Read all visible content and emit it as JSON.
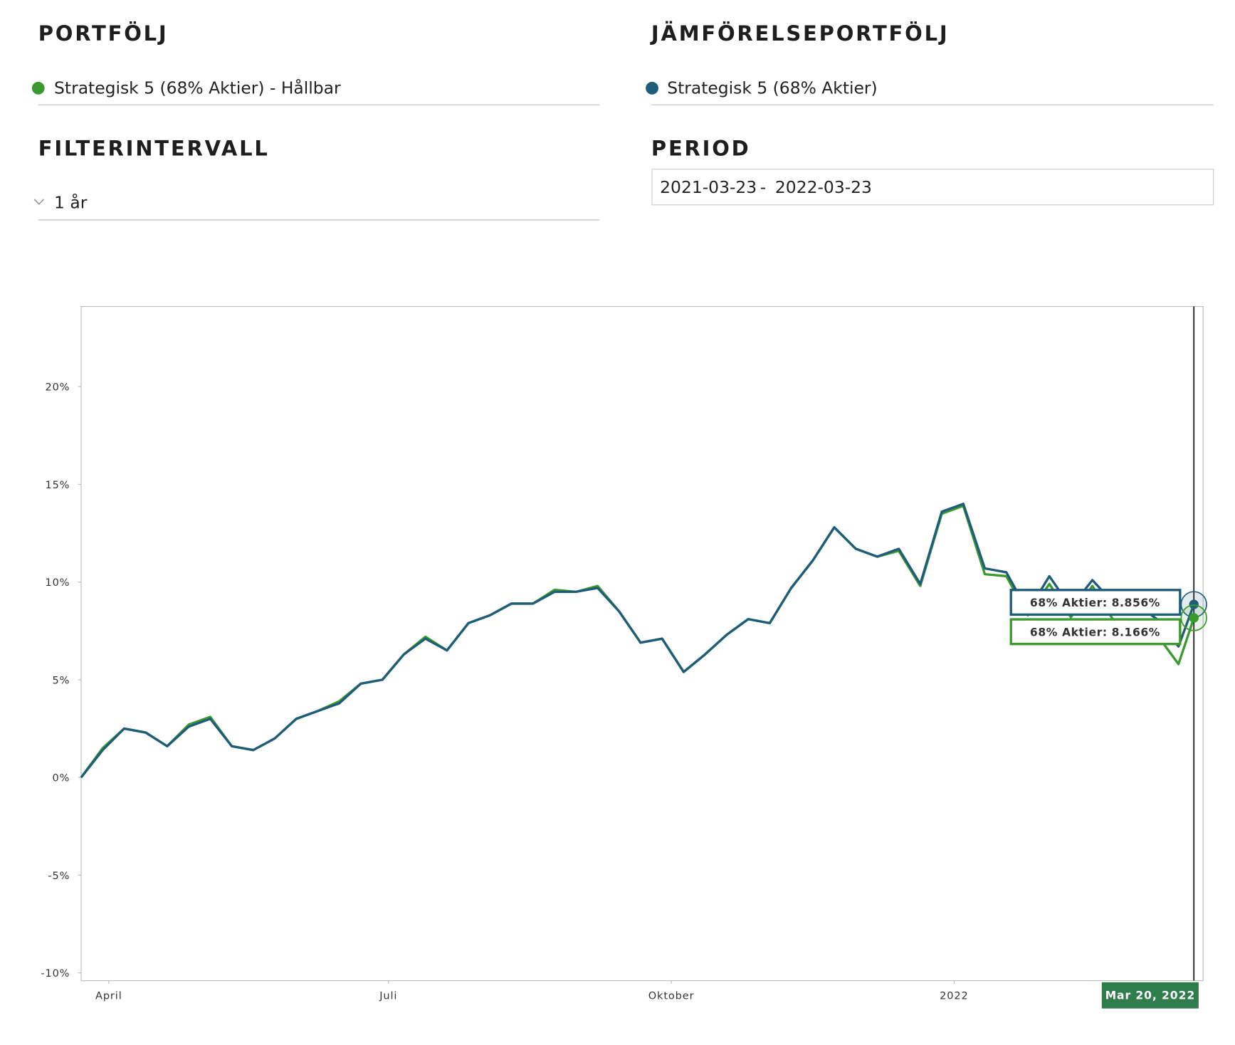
{
  "portfolio": {
    "title": "PORTFÖLJ",
    "selected": "Strategisk 5 (68% Aktier) - Hållbar"
  },
  "comparison": {
    "title": "JÄMFÖRELSEPORTFÖLJ",
    "selected": "Strategisk 5 (68% Aktier)"
  },
  "filter": {
    "title": "FILTERINTERVALL",
    "selected": "1 år"
  },
  "period": {
    "title": "PERIOD",
    "start": "2021-03-23",
    "separator": "-",
    "end": "2022-03-23"
  },
  "chart_data": {
    "type": "line",
    "x": [
      "2021-03-23",
      "2021-03-30",
      "2021-04-06",
      "2021-04-13",
      "2021-04-20",
      "2021-04-27",
      "2021-05-04",
      "2021-05-11",
      "2021-05-18",
      "2021-05-25",
      "2021-06-01",
      "2021-06-08",
      "2021-06-15",
      "2021-06-22",
      "2021-06-29",
      "2021-07-06",
      "2021-07-13",
      "2021-07-20",
      "2021-07-27",
      "2021-08-03",
      "2021-08-10",
      "2021-08-17",
      "2021-08-24",
      "2021-08-31",
      "2021-09-07",
      "2021-09-14",
      "2021-09-21",
      "2021-09-28",
      "2021-10-05",
      "2021-10-12",
      "2021-10-19",
      "2021-10-26",
      "2021-11-02",
      "2021-11-09",
      "2021-11-16",
      "2021-11-23",
      "2021-11-30",
      "2021-12-07",
      "2021-12-14",
      "2021-12-21",
      "2021-12-28",
      "2022-01-04",
      "2022-01-11",
      "2022-01-18",
      "2022-01-25",
      "2022-02-01",
      "2022-02-08",
      "2022-02-15",
      "2022-02-22",
      "2022-03-01",
      "2022-03-08",
      "2022-03-15",
      "2022-03-20"
    ],
    "series": [
      {
        "name": "Strategisk 5 (68% Aktier) - Hållbar",
        "color": "#3a9a2e",
        "values": [
          0,
          1.5,
          2.5,
          2.3,
          1.6,
          2.7,
          3.1,
          1.6,
          1.4,
          2.0,
          3.0,
          3.4,
          3.9,
          4.8,
          5.0,
          6.3,
          7.2,
          6.5,
          7.9,
          8.3,
          8.9,
          8.9,
          9.6,
          9.5,
          9.8,
          8.5,
          6.9,
          7.1,
          5.4,
          6.3,
          7.3,
          8.1,
          7.9,
          9.7,
          11.1,
          12.8,
          11.7,
          11.3,
          11.6,
          9.8,
          13.5,
          13.9,
          10.4,
          10.3,
          8.3,
          9.9,
          8.2,
          9.8,
          8.0,
          7.7,
          7.3,
          5.8,
          8.166
        ]
      },
      {
        "name": "Strategisk 5 (68% Aktier)",
        "color": "#1f5c7a",
        "values": [
          0,
          1.4,
          2.5,
          2.3,
          1.6,
          2.6,
          3.0,
          1.6,
          1.4,
          2.0,
          3.0,
          3.4,
          3.8,
          4.8,
          5.0,
          6.3,
          7.1,
          6.5,
          7.9,
          8.3,
          8.9,
          8.9,
          9.5,
          9.5,
          9.7,
          8.5,
          6.9,
          7.1,
          5.4,
          6.3,
          7.3,
          8.1,
          7.9,
          9.7,
          11.1,
          12.8,
          11.7,
          11.3,
          11.7,
          9.9,
          13.6,
          14.0,
          10.7,
          10.5,
          8.5,
          10.3,
          8.7,
          10.1,
          8.9,
          8.9,
          8.1,
          6.7,
          8.856
        ]
      }
    ],
    "xlim": [
      "2021-03-23",
      "2022-03-23"
    ],
    "xticks": [
      {
        "value": "2021-04-01",
        "label": "April"
      },
      {
        "value": "2021-07-01",
        "label": "Juli"
      },
      {
        "value": "2021-10-01",
        "label": "Oktober"
      },
      {
        "value": "2022-01-01",
        "label": "2022"
      }
    ],
    "ylim": [
      -10.4,
      24.1
    ],
    "yticks": [
      {
        "value": -10,
        "label": "-10%"
      },
      {
        "value": -5,
        "label": "-5%"
      },
      {
        "value": 0,
        "label": "0%"
      },
      {
        "value": 5,
        "label": "5%"
      },
      {
        "value": 10,
        "label": "10%"
      },
      {
        "value": 15,
        "label": "15%"
      },
      {
        "value": 20,
        "label": "20%"
      }
    ],
    "crosshair": {
      "x": "2022-03-20",
      "label": "Mar 20, 2022"
    },
    "tooltips": [
      {
        "label": "68% Aktier: 8.856%",
        "value": 8.856,
        "color": "#1f5c7a"
      },
      {
        "label": "68% Aktier: 8.166%",
        "value": 8.166,
        "color": "#3a9a2e"
      }
    ]
  }
}
